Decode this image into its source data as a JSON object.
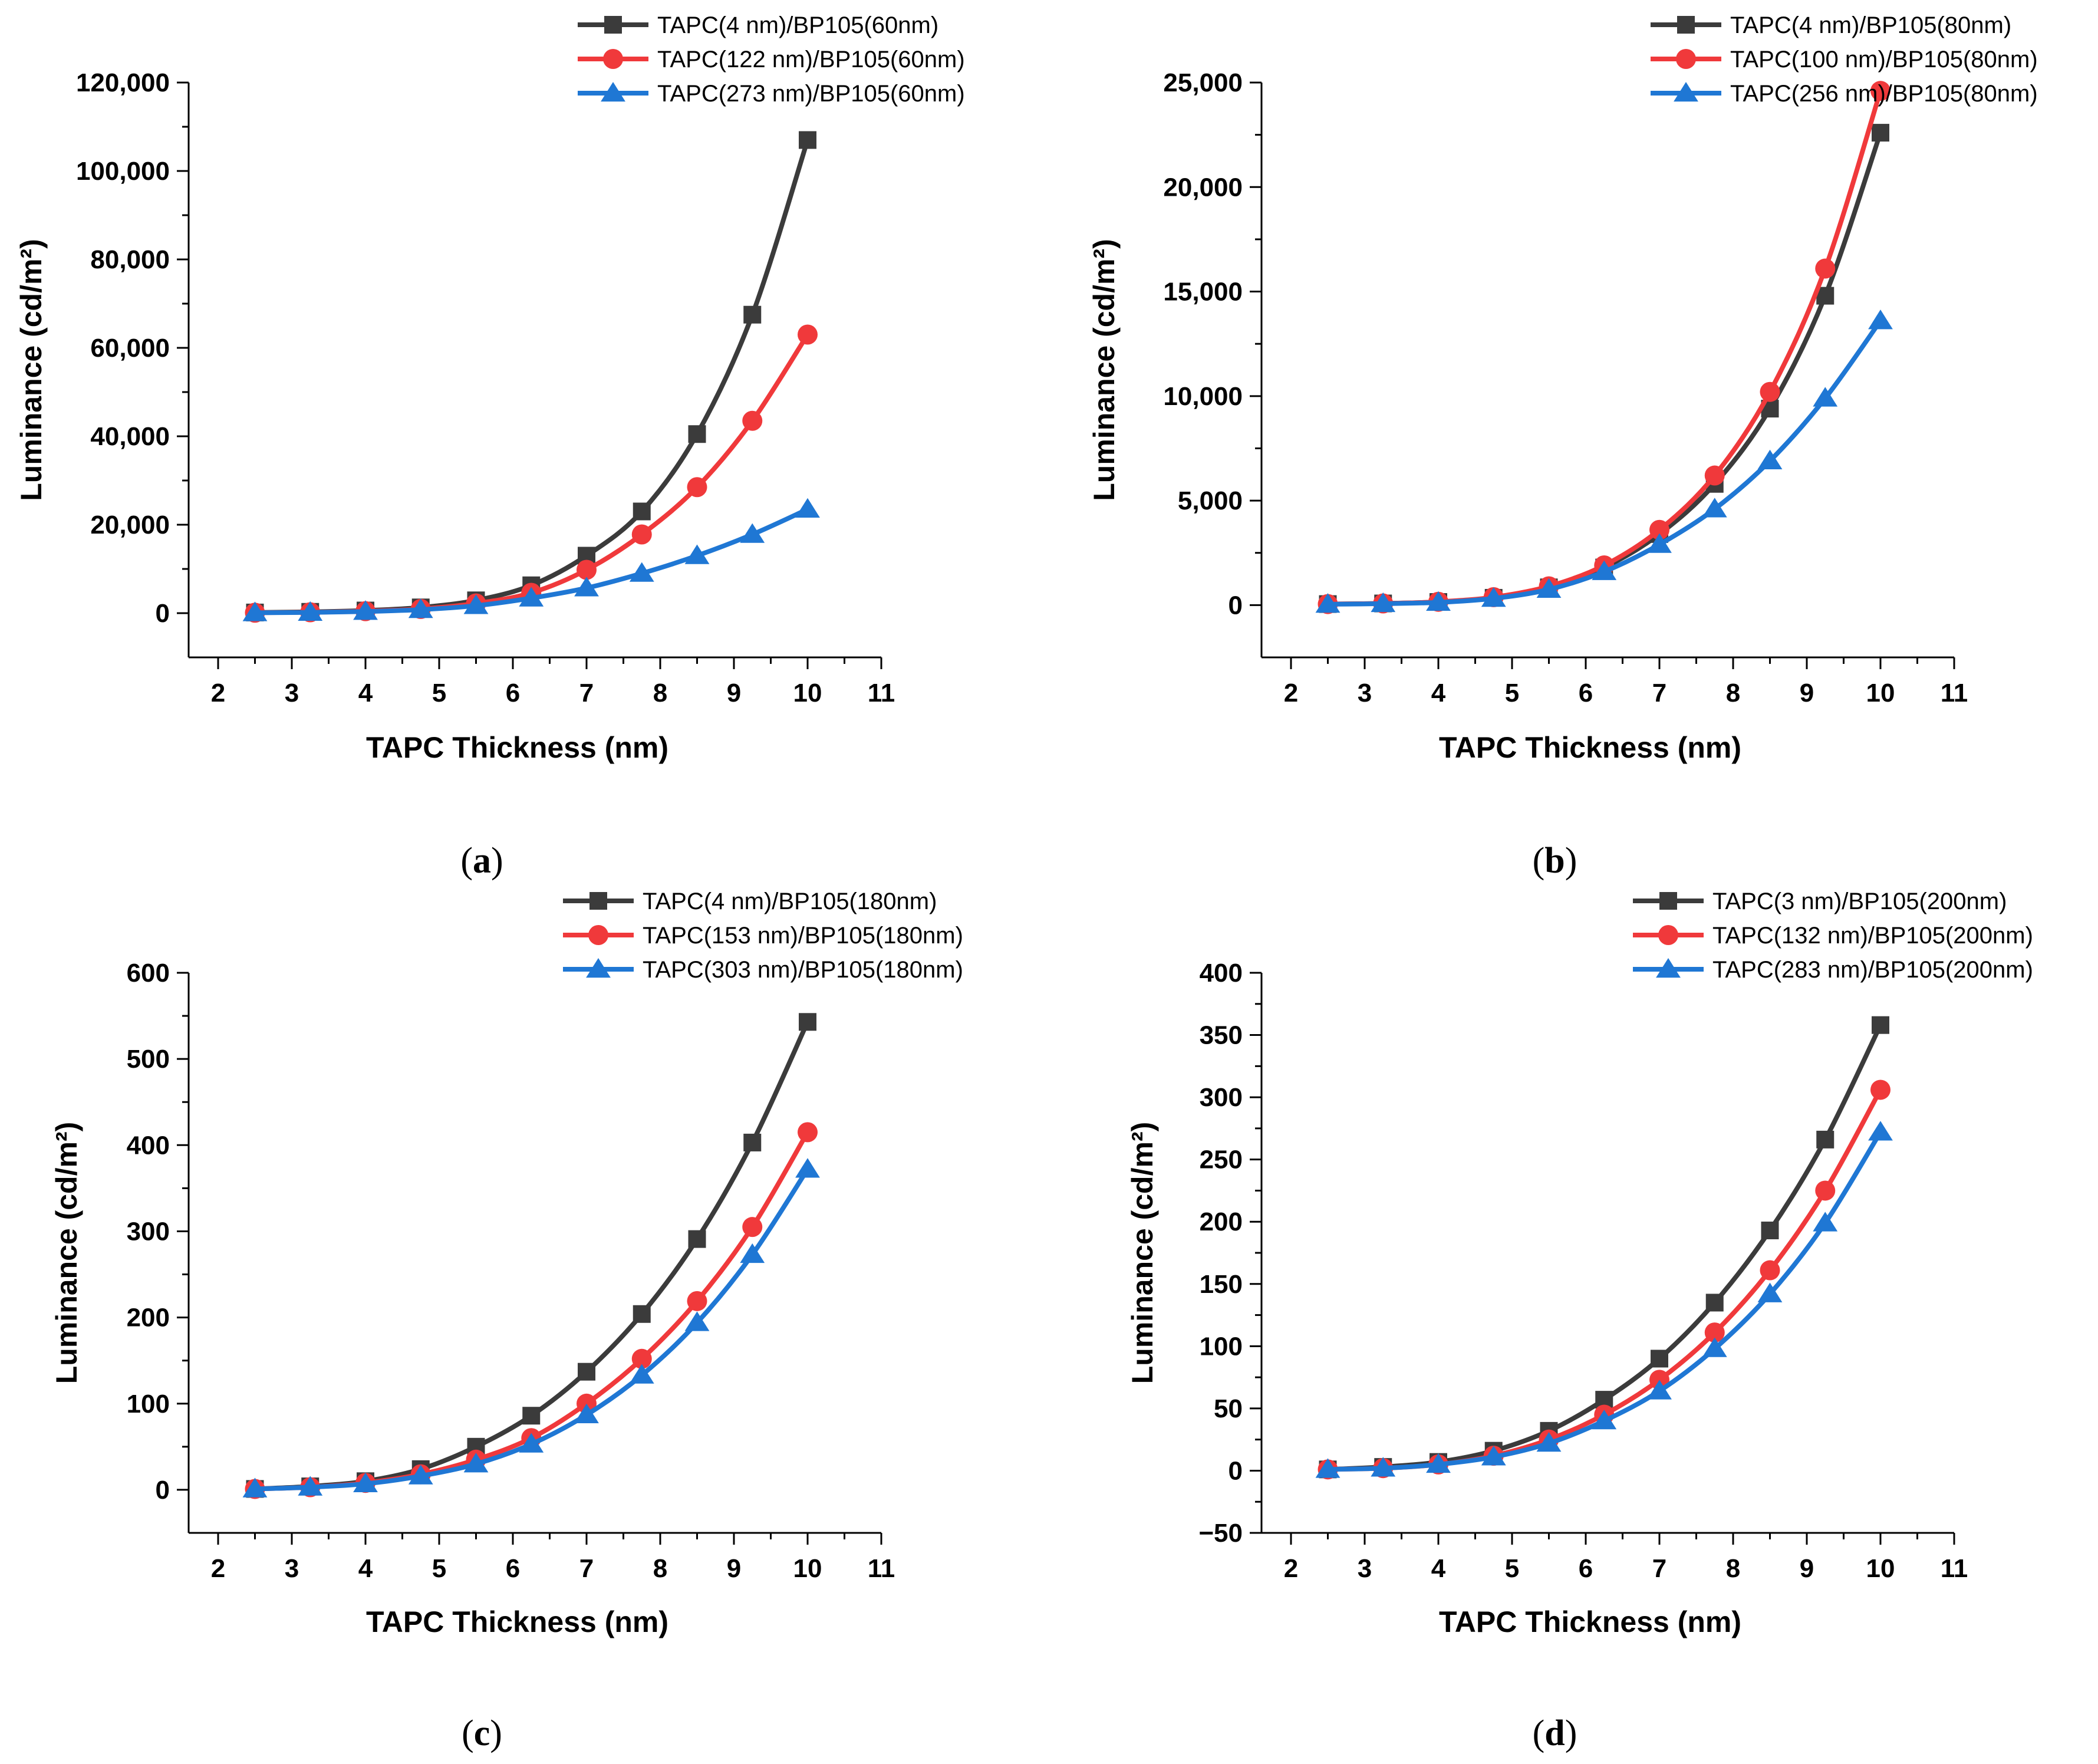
{
  "chart_data": [
    {
      "panel_label": "a",
      "type": "line",
      "xlabel": "TAPC Thickness (nm)",
      "ylabel": "Luminance (cd/m²)",
      "xlim": [
        1.6,
        11
      ],
      "ylim": [
        -10000,
        120000
      ],
      "xticks": [
        2,
        3,
        4,
        5,
        6,
        7,
        8,
        9,
        10,
        11
      ],
      "yticks": [
        0,
        20000,
        40000,
        60000,
        80000,
        100000,
        120000
      ],
      "ytick_labels": [
        "0",
        "20,000",
        "40,000",
        "60,000",
        "80,000",
        "100,000",
        "120,000"
      ],
      "legend_position": "top-right (above plot)",
      "x": [
        2.5,
        3.25,
        4,
        4.75,
        5.5,
        6.25,
        7,
        7.75,
        8.5,
        9.25,
        10
      ],
      "series": [
        {
          "name": "TAPC(4 nm)/BP105(60nm)",
          "color": "#3b3b3b",
          "marker": "square",
          "values": [
            150,
            300,
            600,
            1300,
            2900,
            6300,
            13000,
            23000,
            40500,
            67500,
            107000
          ]
        },
        {
          "name": "TAPC(122 nm)/BP105(60nm)",
          "color": "#f0393b",
          "marker": "circle",
          "values": [
            100,
            200,
            450,
            950,
            2200,
            4600,
            9800,
            17800,
            28500,
            43500,
            63000
          ]
        },
        {
          "name": "TAPC(273 nm)/BP105(60nm)",
          "color": "#1f77d4",
          "marker": "triangle",
          "values": [
            80,
            170,
            380,
            800,
            1700,
            3400,
            5700,
            9000,
            13000,
            17800,
            23500
          ]
        }
      ]
    },
    {
      "panel_label": "b",
      "type": "line",
      "xlabel": "TAPC Thickness (nm)",
      "ylabel": "Luminance (cd/m²)",
      "xlim": [
        1.6,
        11
      ],
      "ylim": [
        -2500,
        25000
      ],
      "xticks": [
        2,
        3,
        4,
        5,
        6,
        7,
        8,
        9,
        10,
        11
      ],
      "yticks": [
        0,
        5000,
        10000,
        15000,
        20000,
        25000
      ],
      "ytick_labels": [
        "0",
        "5,000",
        "10,000",
        "15,000",
        "20,000",
        "25,000"
      ],
      "legend_position": "top-right (above plot)",
      "x": [
        2.5,
        3.25,
        4,
        4.75,
        5.5,
        6.25,
        7,
        7.75,
        8.5,
        9.25,
        10
      ],
      "series": [
        {
          "name": "TAPC(4 nm)/BP105(80nm)",
          "color": "#3b3b3b",
          "marker": "square",
          "values": [
            50,
            80,
            150,
            350,
            850,
            1800,
            3400,
            5800,
            9400,
            14800,
            22600
          ]
        },
        {
          "name": "TAPC(100 nm)/BP105(80nm)",
          "color": "#f0393b",
          "marker": "circle",
          "values": [
            50,
            80,
            160,
            380,
            900,
            1900,
            3600,
            6200,
            10200,
            16100,
            24600
          ]
        },
        {
          "name": "TAPC(256 nm)/BP105(80nm)",
          "color": "#1f77d4",
          "marker": "triangle",
          "values": [
            40,
            70,
            130,
            320,
            750,
            1600,
            2900,
            4600,
            6900,
            9900,
            13600
          ]
        }
      ]
    },
    {
      "panel_label": "c",
      "type": "line",
      "xlabel": "TAPC Thickness (nm)",
      "ylabel": "Luminance (cd/m²)",
      "xlim": [
        1.6,
        11
      ],
      "ylim": [
        -50,
        600
      ],
      "xticks": [
        2,
        3,
        4,
        5,
        6,
        7,
        8,
        9,
        10,
        11
      ],
      "yticks": [
        0,
        100,
        200,
        300,
        400,
        500,
        600
      ],
      "ytick_labels": [
        "0",
        "100",
        "200",
        "300",
        "400",
        "500",
        "600"
      ],
      "legend_position": "top-right (above plot)",
      "x": [
        2.5,
        3.25,
        4,
        4.75,
        5.5,
        6.25,
        7,
        7.75,
        8.5,
        9.25,
        10
      ],
      "series": [
        {
          "name": "TAPC(4 nm)/BP105(180nm)",
          "color": "#3b3b3b",
          "marker": "square",
          "values": [
            1,
            4,
            10,
            24,
            50,
            86,
            137,
            204,
            291,
            403,
            543
          ]
        },
        {
          "name": "TAPC(153 nm)/BP105(180nm)",
          "color": "#f0393b",
          "marker": "circle",
          "values": [
            1,
            3,
            8,
            18,
            35,
            60,
            100,
            152,
            219,
            305,
            415
          ]
        },
        {
          "name": "TAPC(303 nm)/BP105(180nm)",
          "color": "#1f77d4",
          "marker": "triangle",
          "values": [
            1,
            3,
            7,
            16,
            30,
            53,
            87,
            133,
            194,
            273,
            372
          ]
        }
      ]
    },
    {
      "panel_label": "d",
      "type": "line",
      "xlabel": "TAPC Thickness (nm)",
      "ylabel": "Luminance (cd/m²)",
      "xlim": [
        1.6,
        11
      ],
      "ylim": [
        -50,
        400
      ],
      "xticks": [
        2,
        3,
        4,
        5,
        6,
        7,
        8,
        9,
        10,
        11
      ],
      "yticks": [
        -50,
        0,
        50,
        100,
        150,
        200,
        250,
        300,
        350,
        400
      ],
      "ytick_labels": [
        "−50",
        "0",
        "50",
        "100",
        "150",
        "200",
        "250",
        "300",
        "350",
        "400"
      ],
      "legend_position": "top-right (above plot)",
      "x": [
        2.5,
        3.25,
        4,
        4.75,
        5.5,
        6.25,
        7,
        7.75,
        8.5,
        9.25,
        10
      ],
      "series": [
        {
          "name": "TAPC(3 nm)/BP105(200nm)",
          "color": "#3b3b3b",
          "marker": "square",
          "values": [
            1,
            3,
            7,
            16,
            32,
            57,
            90,
            135,
            193,
            266,
            358
          ]
        },
        {
          "name": "TAPC(132 nm)/BP105(200nm)",
          "color": "#f0393b",
          "marker": "circle",
          "values": [
            1,
            2,
            5,
            12,
            25,
            45,
            73,
            111,
            161,
            225,
            306
          ]
        },
        {
          "name": "TAPC(283 nm)/BP105(200nm)",
          "color": "#1f77d4",
          "marker": "triangle",
          "values": [
            1,
            2,
            5,
            11,
            22,
            40,
            64,
            98,
            142,
            199,
            272
          ]
        }
      ]
    }
  ]
}
